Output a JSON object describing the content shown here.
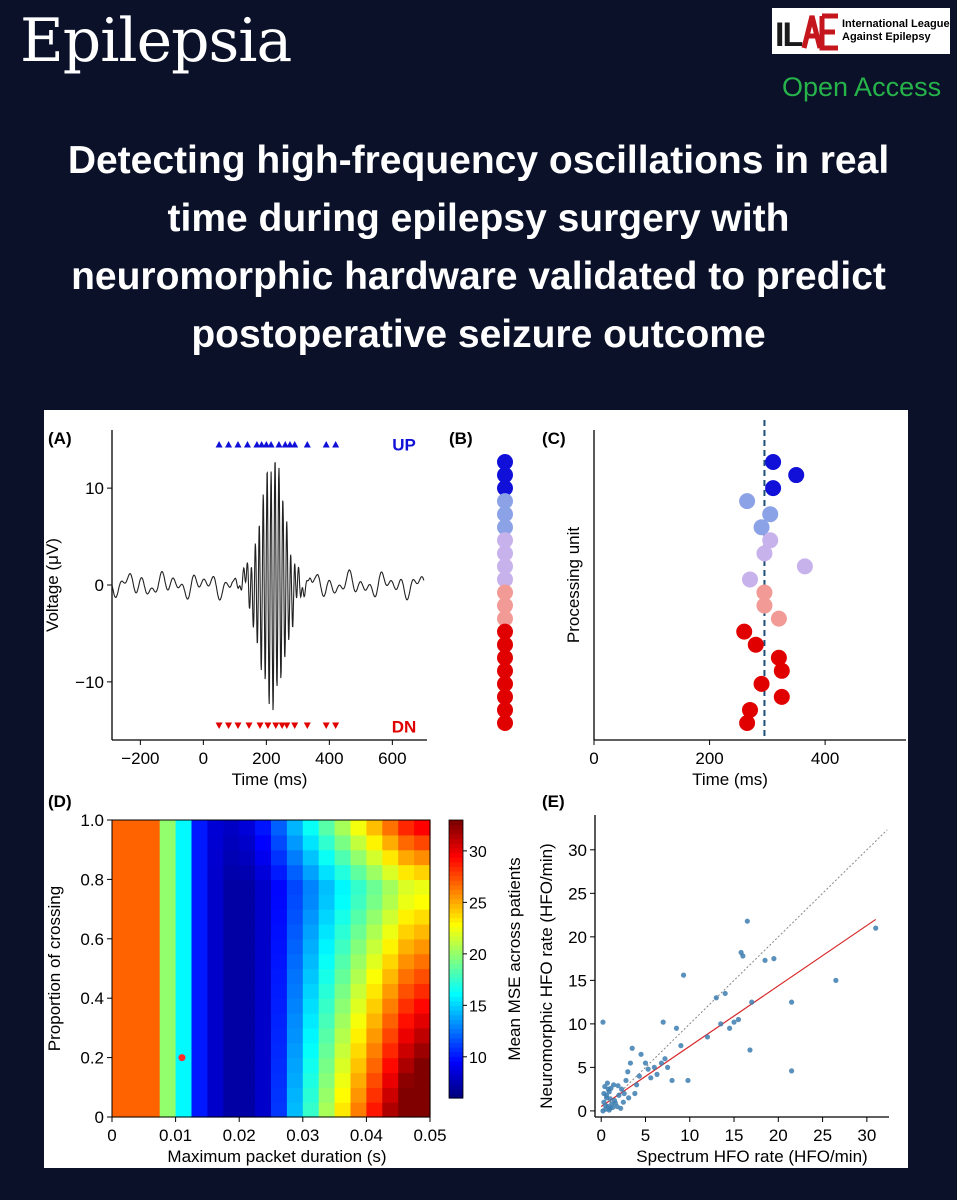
{
  "journal_name": "Epilepsia",
  "logo": {
    "mark": "ILAE",
    "line1": "International League",
    "line2": "Against Epilepsy"
  },
  "access_label": "Open Access",
  "title_lines": [
    "Detecting high-frequency oscillations in real",
    "time during epilepsy surgery with",
    "neuromorphic hardware validated to predict",
    "postoperative seizure outcome"
  ],
  "panels": {
    "a": "(A)",
    "b": "(B)",
    "c": "(C)",
    "d": "(D)",
    "e": "(E)"
  },
  "colors": {
    "background": "#0a1128",
    "access": "#26b34a",
    "up": "#1010d8",
    "dn": "#e00000"
  },
  "chart_data": [
    {
      "panel": "(A)",
      "type": "line",
      "xlabel": "Time (ms)",
      "ylabel": "Voltage (μV)",
      "xticks": [
        -200,
        0,
        200,
        400,
        600
      ],
      "yticks": [
        -10,
        0,
        10
      ],
      "xlim": [
        -290,
        710
      ],
      "ylim": [
        -16,
        16
      ],
      "annotations": {
        "up": "UP",
        "dn": "DN"
      },
      "up_events_ms": [
        50,
        80,
        110,
        140,
        170,
        185,
        200,
        215,
        240,
        260,
        275,
        290,
        330,
        390,
        420
      ],
      "dn_events_ms": [
        50,
        80,
        110,
        145,
        180,
        205,
        230,
        250,
        265,
        290,
        330,
        390,
        420
      ],
      "signal": {
        "center_ms": 220,
        "peak_uv": 12.4,
        "trough_uv": -12.5,
        "freq_hz": 80
      }
    },
    {
      "panel": "(B)",
      "type": "scatter",
      "units": [
        "#1010d8",
        "#1010d8",
        "#1010d8",
        "#8ca2e6",
        "#8ca2e6",
        "#8ca2e6",
        "#c8b2ec",
        "#c8b2ec",
        "#c8b2ec",
        "#c8b2ec",
        "#f29a95",
        "#f29a95",
        "#f29a95",
        "#e00000",
        "#e00000",
        "#e00000",
        "#e00000",
        "#e00000",
        "#e00000",
        "#e00000",
        "#e00000"
      ]
    },
    {
      "panel": "(C)",
      "type": "scatter",
      "xlabel": "Time (ms)",
      "ylabel": "Processing unit",
      "xticks": [
        0,
        200,
        400
      ],
      "xlim": [
        0,
        540
      ],
      "dashed_line_x": 295,
      "points": [
        {
          "unit": 1,
          "t": 310,
          "c": "#1010d8"
        },
        {
          "unit": 2,
          "t": 350,
          "c": "#1010d8"
        },
        {
          "unit": 3,
          "t": 310,
          "c": "#1010d8"
        },
        {
          "unit": 4,
          "t": 265,
          "c": "#8ca2e6"
        },
        {
          "unit": 5,
          "t": 305,
          "c": "#8ca2e6"
        },
        {
          "unit": 6,
          "t": 290,
          "c": "#8ca2e6"
        },
        {
          "unit": 7,
          "t": 305,
          "c": "#c8b2ec"
        },
        {
          "unit": 8,
          "t": 295,
          "c": "#c8b2ec"
        },
        {
          "unit": 9,
          "t": 365,
          "c": "#c8b2ec"
        },
        {
          "unit": 10,
          "t": 270,
          "c": "#c8b2ec"
        },
        {
          "unit": 11,
          "t": 295,
          "c": "#f29a95"
        },
        {
          "unit": 12,
          "t": 295,
          "c": "#f29a95"
        },
        {
          "unit": 13,
          "t": 320,
          "c": "#f29a95"
        },
        {
          "unit": 14,
          "t": 260,
          "c": "#e00000"
        },
        {
          "unit": 15,
          "t": 280,
          "c": "#e00000"
        },
        {
          "unit": 16,
          "t": 320,
          "c": "#e00000"
        },
        {
          "unit": 17,
          "t": 325,
          "c": "#e00000"
        },
        {
          "unit": 18,
          "t": 290,
          "c": "#e00000"
        },
        {
          "unit": 19,
          "t": 325,
          "c": "#e00000"
        },
        {
          "unit": 20,
          "t": 270,
          "c": "#e00000"
        },
        {
          "unit": 21,
          "t": 265,
          "c": "#e00000"
        }
      ]
    },
    {
      "panel": "(D)",
      "type": "heatmap",
      "xlabel": "Maximum packet duration (s)",
      "ylabel": "Proportion of crossing",
      "colorbar_label": "Mean MSE across patients",
      "xticks": [
        "0",
        "0.01",
        "0.02",
        "0.03",
        "0.04",
        "0.05"
      ],
      "yticks": [
        "0",
        "0.2",
        "0.4",
        "0.6",
        "0.8",
        "1.0"
      ],
      "colorbar_ticks": [
        10,
        15,
        20,
        25,
        30
      ],
      "zlim": [
        6,
        33
      ],
      "grid": [
        20,
        20
      ],
      "marker": {
        "x": 0.011,
        "y": 0.2
      }
    },
    {
      "panel": "(E)",
      "type": "scatter",
      "xlabel": "Spectrum HFO rate (HFO/min)",
      "ylabel": "Neuromorphic HFO rate (HFO/min)",
      "xticks": [
        0,
        5,
        10,
        15,
        20,
        25,
        30
      ],
      "yticks": [
        0,
        5,
        10,
        15,
        20,
        25,
        30
      ],
      "xlim": [
        -0.7,
        32.5
      ],
      "ylim": [
        -0.7,
        34
      ],
      "fit_line": {
        "x0": 0,
        "y0": 0.5,
        "x1": 31,
        "y1": 22
      },
      "identity_line": true,
      "points": [
        [
          0.2,
          10.2
        ],
        [
          0.5,
          0.2
        ],
        [
          0.8,
          0.5
        ],
        [
          1.0,
          0.3
        ],
        [
          0.3,
          1.0
        ],
        [
          0.6,
          1.5
        ],
        [
          0.9,
          2.2
        ],
        [
          1.2,
          0.8
        ],
        [
          1.5,
          1.2
        ],
        [
          1.8,
          0.5
        ],
        [
          0.4,
          2.8
        ],
        [
          0.7,
          3.2
        ],
        [
          1.1,
          2.6
        ],
        [
          1.4,
          3.0
        ],
        [
          2.0,
          1.8
        ],
        [
          2.3,
          2.5
        ],
        [
          2.5,
          1.0
        ],
        [
          2.8,
          3.5
        ],
        [
          3.0,
          4.5
        ],
        [
          3.3,
          5.5
        ],
        [
          3.5,
          7.2
        ],
        [
          3.8,
          2.0
        ],
        [
          4.0,
          3.0
        ],
        [
          4.3,
          4.0
        ],
        [
          4.5,
          6.5
        ],
        [
          5.0,
          5.5
        ],
        [
          5.3,
          4.8
        ],
        [
          5.6,
          3.8
        ],
        [
          6.0,
          5.0
        ],
        [
          6.3,
          4.2
        ],
        [
          6.8,
          5.5
        ],
        [
          7.0,
          10.2
        ],
        [
          7.2,
          6.0
        ],
        [
          7.5,
          5.0
        ],
        [
          8.0,
          3.5
        ],
        [
          8.5,
          9.5
        ],
        [
          9.0,
          7.5
        ],
        [
          9.3,
          15.6
        ],
        [
          9.8,
          3.5
        ],
        [
          12.0,
          8.5
        ],
        [
          13.0,
          13.0
        ],
        [
          13.5,
          10.0
        ],
        [
          14.0,
          13.5
        ],
        [
          14.5,
          9.5
        ],
        [
          15.0,
          10.2
        ],
        [
          15.5,
          10.5
        ],
        [
          15.8,
          18.2
        ],
        [
          16.0,
          17.8
        ],
        [
          16.5,
          21.8
        ],
        [
          16.8,
          7.0
        ],
        [
          17.0,
          12.5
        ],
        [
          18.5,
          17.3
        ],
        [
          19.5,
          17.5
        ],
        [
          21.5,
          12.5
        ],
        [
          21.5,
          4.6
        ],
        [
          26.5,
          15.0
        ],
        [
          31.0,
          21.0
        ],
        [
          0.2,
          0.0
        ],
        [
          0.5,
          0.6
        ],
        [
          0.9,
          0.1
        ],
        [
          1.3,
          0.4
        ],
        [
          1.6,
          0.9
        ],
        [
          2.2,
          0.3
        ],
        [
          0.6,
          1.8
        ],
        [
          1.0,
          1.4
        ],
        [
          0.3,
          2.0
        ],
        [
          2.6,
          2.0
        ],
        [
          3.1,
          1.5
        ],
        [
          0.8,
          2.5
        ],
        [
          1.9,
          2.9
        ]
      ]
    }
  ]
}
